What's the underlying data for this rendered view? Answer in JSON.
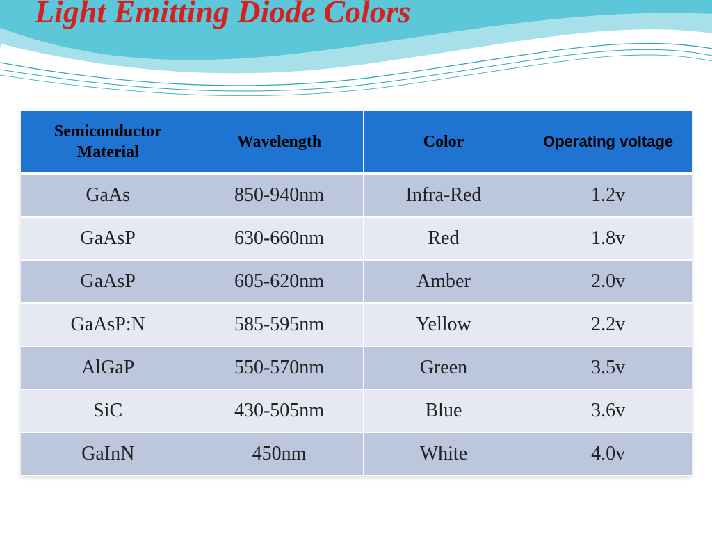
{
  "title": "Light Emitting Diode Colors",
  "wave": {
    "fill_main": "#5bc7d8",
    "fill_light": "#a8e0ea",
    "stroke_thin": "#2aa6b8",
    "stroke_white": "#ffffff"
  },
  "table": {
    "header_bg": "#1f73d1",
    "row_odd_bg": "#bcc6dd",
    "row_even_bg": "#e6e9f2",
    "header_fontsize": 24,
    "cell_fontsize": 28,
    "columns": [
      "Semiconductor Material",
      "Wavelength",
      "Color",
      "Operating voltage"
    ],
    "rows": [
      [
        "GaAs",
        "850-940nm",
        "Infra-Red",
        "1.2v"
      ],
      [
        "GaAsP",
        "630-660nm",
        "Red",
        "1.8v"
      ],
      [
        "GaAsP",
        "605-620nm",
        "Amber",
        "2.0v"
      ],
      [
        "GaAsP:N",
        "585-595nm",
        "Yellow",
        "2.2v"
      ],
      [
        "AlGaP",
        "550-570nm",
        "Green",
        "3.5v"
      ],
      [
        "SiC",
        "430-505nm",
        "Blue",
        "3.6v"
      ],
      [
        "GaInN",
        "450nm",
        "White",
        "4.0v"
      ]
    ]
  }
}
